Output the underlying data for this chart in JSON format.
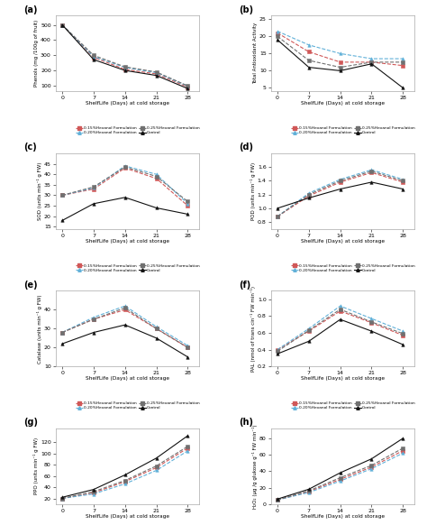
{
  "x": [
    0,
    7,
    14,
    21,
    28
  ],
  "panels": [
    {
      "label": "(a)",
      "ylabel": "Phenols (mg /100g of fruit)",
      "data": {
        "0.15%": [
          500,
          285,
          205,
          175,
          88
        ],
        "0.20%": [
          500,
          290,
          218,
          183,
          94
        ],
        "0.25%": [
          500,
          298,
          222,
          188,
          96
        ],
        "Control": [
          500,
          270,
          198,
          165,
          78
        ]
      },
      "ylim": [
        60,
        560
      ],
      "yticks": [
        100,
        200,
        300,
        400,
        500
      ]
    },
    {
      "label": "(b)",
      "ylabel": "Total Antioxidant Activity",
      "data": {
        "0.15%": [
          21,
          15.5,
          12.5,
          12.5,
          11.5
        ],
        "0.20%": [
          21.5,
          17.5,
          15,
          13.5,
          13.5
        ],
        "0.25%": [
          20,
          13,
          11,
          12.5,
          12.5
        ],
        "Control": [
          19,
          11,
          10,
          12,
          5
        ]
      },
      "ylim": [
        4,
        26
      ],
      "yticks": [
        5,
        10,
        15,
        20,
        25
      ]
    },
    {
      "label": "(c)",
      "ylabel": "SOD (units min⁻¹ g FW)",
      "data": {
        "0.15%": [
          30,
          33,
          43,
          38,
          25
        ],
        "0.20%": [
          30,
          33.5,
          44,
          40,
          26
        ],
        "0.25%": [
          30,
          34,
          43.5,
          39,
          27
        ],
        "Control": [
          18,
          26,
          29,
          24,
          21
        ]
      },
      "ylim": [
        14,
        50
      ],
      "yticks": [
        15,
        20,
        25,
        30,
        35,
        40,
        45
      ]
    },
    {
      "label": "(d)",
      "ylabel": "POD (units min⁻¹ g FW)",
      "data": {
        "0.15%": [
          0.88,
          1.18,
          1.38,
          1.52,
          1.38
        ],
        "0.20%": [
          0.88,
          1.22,
          1.42,
          1.56,
          1.42
        ],
        "0.25%": [
          0.88,
          1.2,
          1.4,
          1.54,
          1.4
        ],
        "Control": [
          1.0,
          1.15,
          1.28,
          1.38,
          1.28
        ]
      },
      "ylim": [
        0.7,
        1.8
      ],
      "yticks": [
        0.8,
        1.0,
        1.2,
        1.4,
        1.6
      ]
    },
    {
      "label": "(e)",
      "ylabel": "Catalase (units min⁻¹ g FW)",
      "data": {
        "0.15%": [
          28,
          35,
          40,
          30,
          20
        ],
        "0.20%": [
          28,
          36,
          42,
          31,
          21
        ],
        "0.25%": [
          28,
          35,
          41,
          30,
          20
        ],
        "Control": [
          22,
          28,
          32,
          25,
          15
        ]
      },
      "ylim": [
        10,
        50
      ],
      "yticks": [
        10,
        20,
        30,
        40
      ]
    },
    {
      "label": "(f)",
      "ylabel": "PAL (nmol of trans cin⁻¹ FW min⁻¹)",
      "data": {
        "0.15%": [
          0.4,
          0.62,
          0.86,
          0.72,
          0.57
        ],
        "0.20%": [
          0.4,
          0.65,
          0.92,
          0.77,
          0.62
        ],
        "0.25%": [
          0.38,
          0.63,
          0.88,
          0.73,
          0.59
        ],
        "Control": [
          0.35,
          0.5,
          0.76,
          0.62,
          0.46
        ]
      },
      "ylim": [
        0.2,
        1.1
      ],
      "yticks": [
        0.2,
        0.4,
        0.6,
        0.8,
        1.0
      ]
    },
    {
      "label": "(g)",
      "ylabel": "PPO (units min⁻¹ g FW)",
      "data": {
        "0.15%": [
          20,
          30,
          50,
          75,
          110
        ],
        "0.20%": [
          20,
          28,
          46,
          70,
          105
        ],
        "0.25%": [
          20,
          32,
          52,
          78,
          113
        ],
        "Control": [
          22,
          36,
          62,
          92,
          132
        ]
      },
      "ylim": [
        10,
        145
      ],
      "yticks": [
        20,
        40,
        60,
        80,
        100,
        120
      ]
    },
    {
      "label": "(h)",
      "ylabel": "H₂O₂ (μg /g glukose g⁻¹ FW min⁻¹)",
      "data": {
        "0.15%": [
          5,
          15,
          30,
          45,
          65
        ],
        "0.20%": [
          5,
          14,
          28,
          43,
          62
        ],
        "0.25%": [
          5,
          16,
          32,
          47,
          68
        ],
        "Control": [
          6,
          18,
          38,
          55,
          80
        ]
      },
      "ylim": [
        0,
        92
      ],
      "yticks": [
        0,
        20,
        40,
        60,
        80
      ]
    }
  ],
  "plot_styles": [
    {
      "key": "0.15%",
      "label": "0.15%Hexanol Formulation",
      "color": "#d05858",
      "ls": "--",
      "marker": "s",
      "ms": 2.5,
      "lw": 0.8
    },
    {
      "key": "0.20%",
      "label": "0.20%Hexanol Formulation",
      "color": "#60b0d8",
      "ls": "--",
      "marker": "^",
      "ms": 2.5,
      "lw": 0.8
    },
    {
      "key": "0.25%",
      "label": "0.25%Hexanol Formulation",
      "color": "#707070",
      "ls": "--",
      "marker": "s",
      "ms": 2.5,
      "lw": 0.8
    },
    {
      "key": "Control",
      "label": "Control",
      "color": "#111111",
      "ls": "-",
      "marker": "^",
      "ms": 2.5,
      "lw": 0.8
    }
  ],
  "xlabel": "ShelfLife (Days) at cold storage"
}
